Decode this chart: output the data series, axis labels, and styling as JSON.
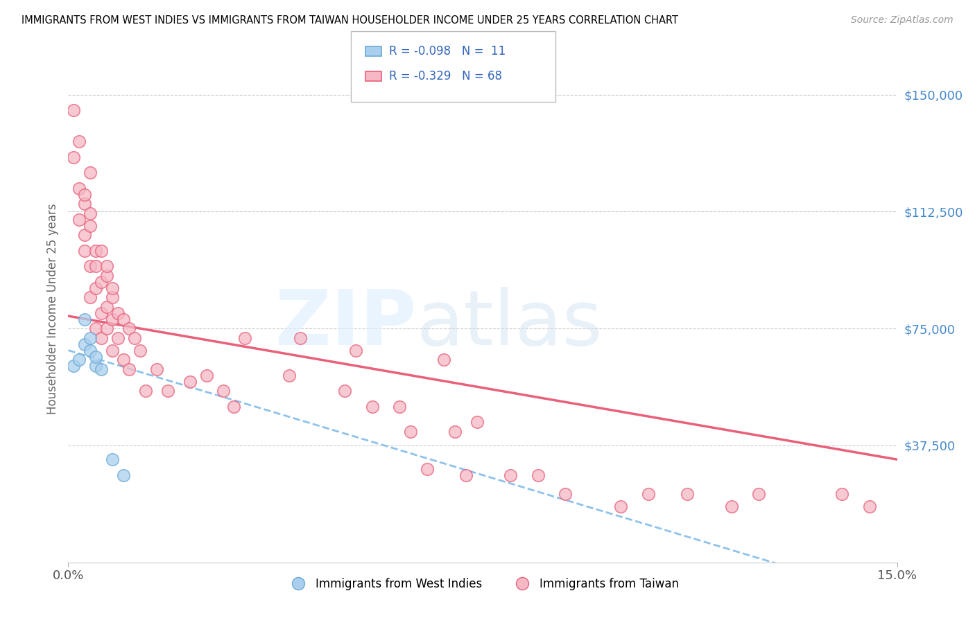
{
  "title": "IMMIGRANTS FROM WEST INDIES VS IMMIGRANTS FROM TAIWAN HOUSEHOLDER INCOME UNDER 25 YEARS CORRELATION CHART",
  "source": "Source: ZipAtlas.com",
  "ylabel": "Householder Income Under 25 years",
  "xmin": 0.0,
  "xmax": 0.15,
  "ymin": 0,
  "ymax": 162500,
  "yticks": [
    0,
    37500,
    75000,
    112500,
    150000
  ],
  "ytick_labels": [
    "",
    "$37,500",
    "$75,000",
    "$112,500",
    "$150,000"
  ],
  "color_west_indies": "#aacfee",
  "color_taiwan": "#f5b8c4",
  "edge_west_indies": "#6aaad4",
  "edge_taiwan": "#e8607a",
  "trendline_west_indies_color": "#7ab8e8",
  "trendline_taiwan_color": "#e8607a",
  "west_indies_x": [
    0.001,
    0.002,
    0.003,
    0.003,
    0.004,
    0.004,
    0.005,
    0.005,
    0.006,
    0.008,
    0.01
  ],
  "west_indies_y": [
    63000,
    65000,
    70000,
    78000,
    72000,
    68000,
    63000,
    66000,
    62000,
    33000,
    28000
  ],
  "taiwan_x": [
    0.001,
    0.001,
    0.002,
    0.002,
    0.002,
    0.003,
    0.003,
    0.003,
    0.003,
    0.004,
    0.004,
    0.004,
    0.004,
    0.004,
    0.005,
    0.005,
    0.005,
    0.005,
    0.006,
    0.006,
    0.006,
    0.006,
    0.007,
    0.007,
    0.007,
    0.007,
    0.008,
    0.008,
    0.008,
    0.008,
    0.009,
    0.009,
    0.01,
    0.01,
    0.011,
    0.011,
    0.012,
    0.013,
    0.014,
    0.016,
    0.018,
    0.022,
    0.025,
    0.028,
    0.03,
    0.032,
    0.04,
    0.042,
    0.05,
    0.052,
    0.055,
    0.06,
    0.062,
    0.065,
    0.068,
    0.07,
    0.072,
    0.074,
    0.08,
    0.085,
    0.09,
    0.1,
    0.105,
    0.112,
    0.12,
    0.125,
    0.14,
    0.145
  ],
  "taiwan_y": [
    145000,
    130000,
    135000,
    120000,
    110000,
    115000,
    105000,
    118000,
    100000,
    125000,
    95000,
    108000,
    85000,
    112000,
    100000,
    88000,
    75000,
    95000,
    90000,
    80000,
    100000,
    72000,
    92000,
    82000,
    75000,
    95000,
    85000,
    78000,
    68000,
    88000,
    80000,
    72000,
    78000,
    65000,
    75000,
    62000,
    72000,
    68000,
    55000,
    62000,
    55000,
    58000,
    60000,
    55000,
    50000,
    72000,
    60000,
    72000,
    55000,
    68000,
    50000,
    50000,
    42000,
    30000,
    65000,
    42000,
    28000,
    45000,
    28000,
    28000,
    22000,
    18000,
    22000,
    22000,
    18000,
    22000,
    22000,
    18000
  ],
  "tw_trend_x0": 0.0,
  "tw_trend_y0": 79000,
  "tw_trend_x1": 0.15,
  "tw_trend_y1": 33000,
  "wi_trend_x0": 0.0,
  "wi_trend_y0": 68000,
  "wi_trend_x1": 0.015,
  "wi_trend_y1": 60000
}
